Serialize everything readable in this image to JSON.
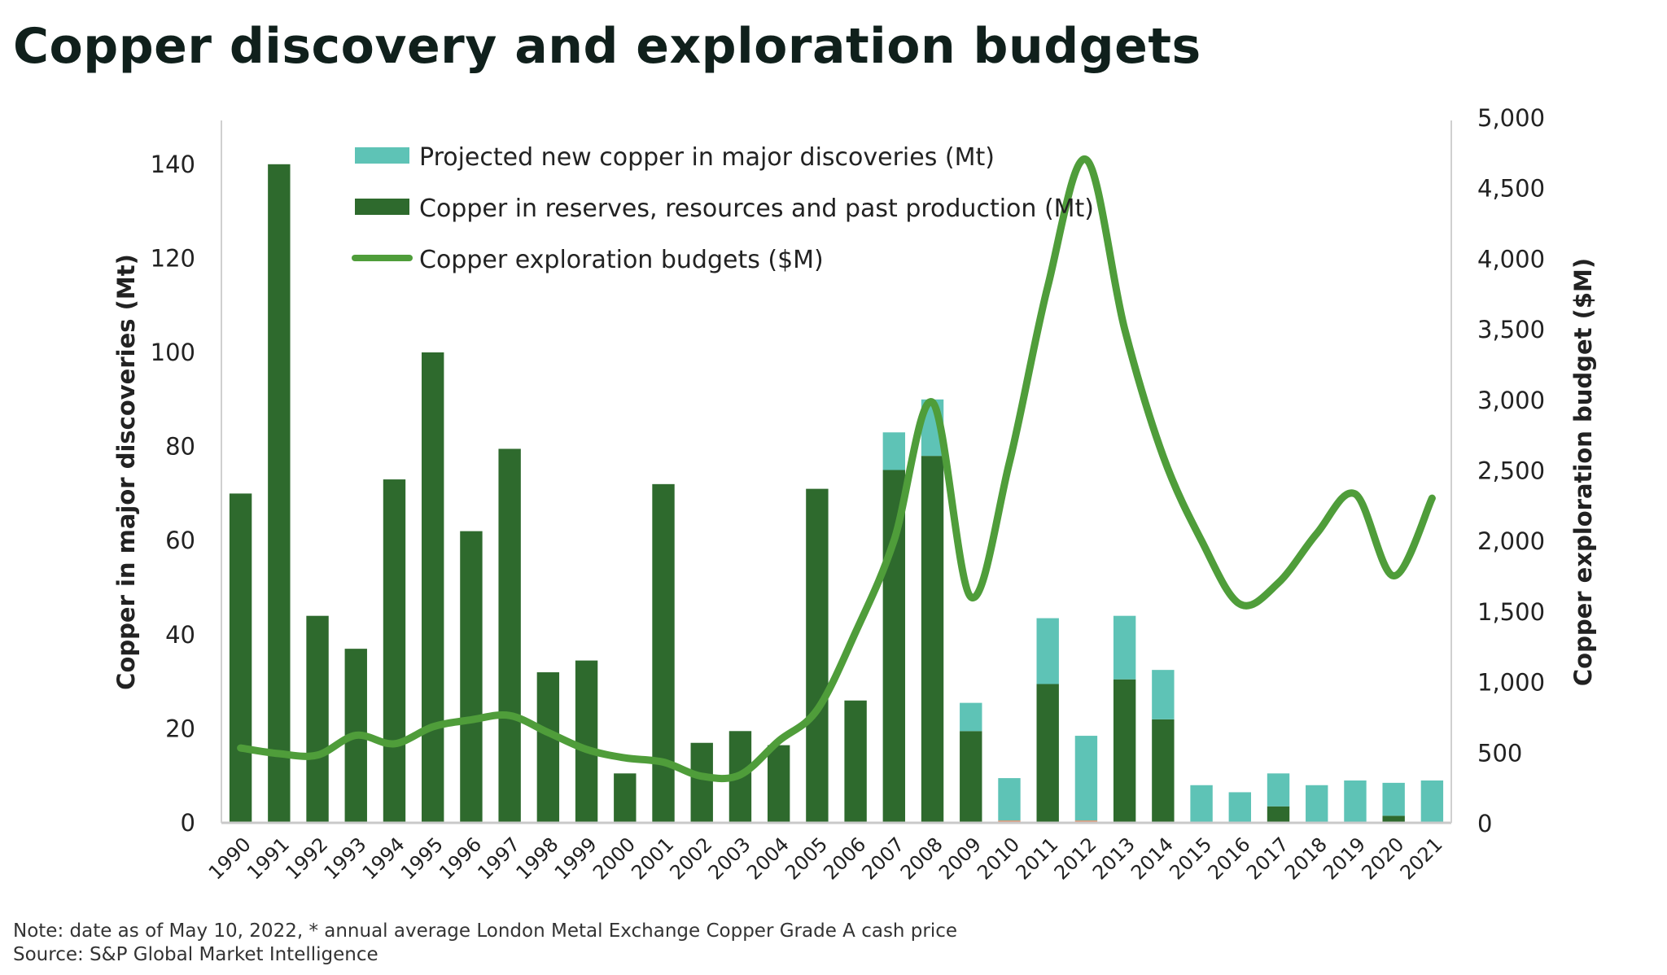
{
  "title": "Copper discovery and exploration budgets",
  "notes": {
    "note": "Note: date as of May 10, 2022, * annual average London Metal Exchange Copper Grade A cash price",
    "source": "Source: S&P Global Market Intelligence"
  },
  "colors": {
    "reserves": "#2e6a2d",
    "projected": "#5ec3b6",
    "budget": "#4f9d3a",
    "trace": "#e0906a"
  },
  "chart_data": {
    "type": "bar",
    "title": "Copper discovery and exploration budgets",
    "categories": [
      "1990",
      "1991",
      "1992",
      "1993",
      "1994",
      "1995",
      "1996",
      "1997",
      "1998",
      "1999",
      "2000",
      "2001",
      "2002",
      "2003",
      "2004",
      "2005",
      "2006",
      "2007",
      "2008",
      "2009",
      "2010",
      "2011",
      "2012",
      "2013",
      "2014",
      "2015",
      "2016",
      "2017",
      "2018",
      "2019",
      "2020",
      "2021"
    ],
    "ylabel": "Copper in major discoveries (Mt)",
    "y2label": "Copper exploration budget ($M)",
    "ylim": [
      0,
      150
    ],
    "y2lim": [
      0,
      5000
    ],
    "yticks": [
      "0",
      "20",
      "40",
      "60",
      "80",
      "100",
      "120",
      "140"
    ],
    "y2ticks": [
      "0",
      "500",
      "1,000",
      "1,500",
      "2,000",
      "2,500",
      "3,000",
      "3,500",
      "4,000",
      "4,500",
      "5,000"
    ],
    "legend_position": "top-left",
    "series": [
      {
        "name": "Projected new copper in major discoveries (Mt)",
        "kind": "stacked-bar",
        "values": [
          0,
          0,
          0,
          0,
          0,
          0,
          0,
          0,
          0,
          0,
          0,
          0,
          0,
          0,
          0,
          0,
          0,
          8,
          12,
          6,
          9,
          14,
          18,
          13.5,
          10.5,
          8,
          6.5,
          7,
          8,
          9,
          7,
          9
        ]
      },
      {
        "name": "Copper in reserves, resources and past production (Mt)",
        "kind": "stacked-bar",
        "values": [
          70,
          140,
          44,
          37,
          73,
          100,
          62,
          79.5,
          32,
          34.5,
          10.5,
          72,
          17,
          19.5,
          16.5,
          71,
          26,
          75,
          78,
          19.5,
          0.5,
          29.5,
          0.5,
          30.5,
          22,
          0,
          0,
          3.5,
          0,
          0,
          1.5,
          0
        ]
      },
      {
        "name": "Copper exploration budgets ($M)",
        "kind": "line",
        "axis": "right",
        "values": [
          530,
          490,
          480,
          620,
          560,
          680,
          730,
          760,
          640,
          520,
          460,
          430,
          330,
          340,
          580,
          800,
          1350,
          2000,
          2980,
          1600,
          2550,
          3800,
          4700,
          3500,
          2600,
          2000,
          1550,
          1700,
          2050,
          2330,
          1750,
          2300
        ]
      }
    ]
  }
}
